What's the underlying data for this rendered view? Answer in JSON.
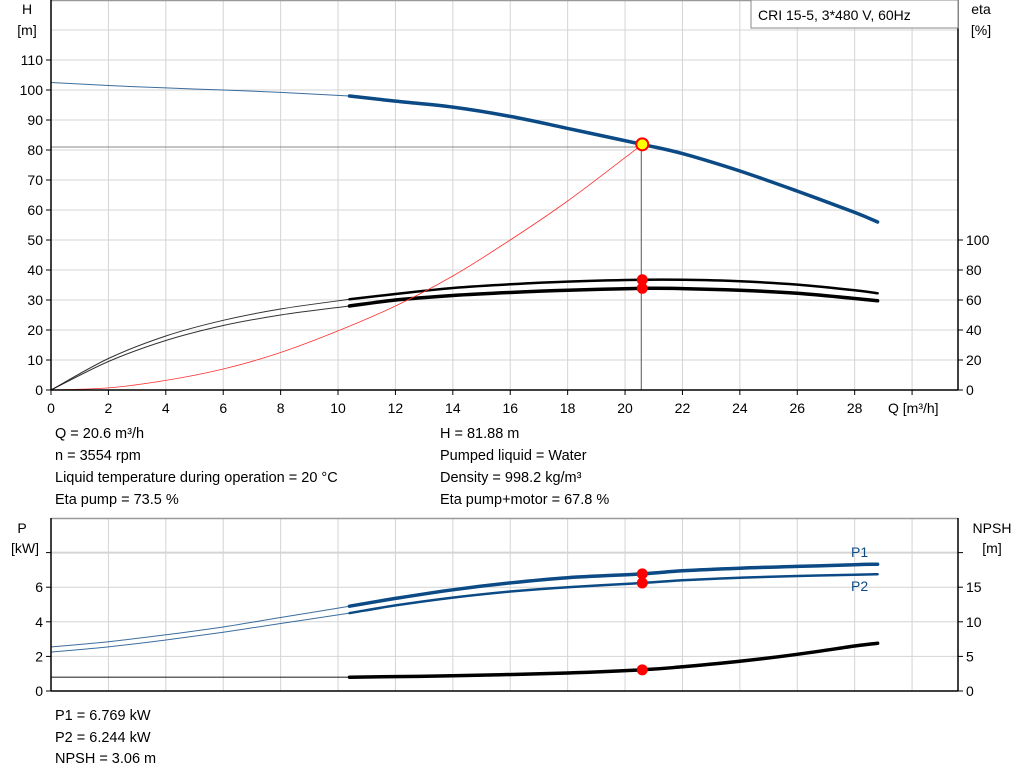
{
  "title_box": "CRI 15-5, 3*480 V, 60Hz",
  "colors": {
    "head": "#0b4a85",
    "eta": "#000000",
    "system": "#ff3030",
    "power": "#0b4a85",
    "npsh": "#000000",
    "point": "#ff0000",
    "op_fill": "#ffff00",
    "grid": "#d4d4d4"
  },
  "chart_data": [
    {
      "type": "line",
      "xlabel": "Q [m³/h]",
      "ylabel_left": [
        "H",
        "[m]"
      ],
      "ylabel_right": [
        "eta",
        "[%]"
      ],
      "xlim": [
        0,
        31.6
      ],
      "ylim_left": [
        0,
        130
      ],
      "ylim_right": [
        0,
        260
      ],
      "x_ticks": [
        0,
        2,
        4,
        6,
        8,
        10,
        12,
        14,
        16,
        18,
        20,
        22,
        24,
        26,
        28
      ],
      "y_ticks_left": [
        0,
        10,
        20,
        30,
        40,
        50,
        60,
        70,
        80,
        90,
        100,
        110
      ],
      "y_ticks_right": [
        0,
        20,
        40,
        60,
        80,
        100
      ],
      "grid": true,
      "duty_range_start_q": 10.4,
      "series": [
        {
          "key": "head",
          "axis": "left",
          "x": [
            0,
            2,
            4,
            6,
            8,
            10.4,
            12,
            14,
            16,
            18,
            20.6,
            22,
            24,
            26,
            28,
            28.8
          ],
          "y": [
            102.5,
            101.5,
            100.7,
            100,
            99.2,
            98,
            96.3,
            94.3,
            91.2,
            87.2,
            81.88,
            78.8,
            73,
            66.3,
            59.2,
            56
          ]
        },
        {
          "key": "eta_pump",
          "axis": "right",
          "x": [
            0,
            2,
            4,
            6,
            8,
            10.4,
            12,
            14,
            16,
            18,
            20.6,
            22,
            24,
            26,
            28,
            28.8
          ],
          "y": [
            0,
            21,
            36,
            46.5,
            54,
            60.5,
            64,
            68,
            70.5,
            72.3,
            73.5,
            73.5,
            72.5,
            70.3,
            66.5,
            64.5
          ]
        },
        {
          "key": "eta_pump_motor",
          "axis": "right",
          "x": [
            0,
            2,
            4,
            6,
            8,
            10.4,
            12,
            14,
            16,
            18,
            20.6,
            22,
            24,
            26,
            28,
            28.8
          ],
          "y": [
            0,
            19,
            33,
            43,
            50,
            56,
            60,
            63,
            65,
            66.5,
            67.8,
            67.6,
            66.5,
            64.5,
            61,
            59.5
          ]
        },
        {
          "key": "system",
          "axis": "left",
          "x": [
            0,
            2,
            4,
            6,
            8,
            10,
            12,
            14,
            16,
            18,
            20.6
          ],
          "y": [
            0,
            0.7,
            3.2,
            7,
            12.5,
            19.7,
            28,
            38,
            50,
            63,
            81.88
          ]
        }
      ],
      "operating_point": {
        "q": 20.6,
        "h": 81.88,
        "eta_pump": 73.5,
        "eta_pump_motor": 67.8
      }
    },
    {
      "type": "line",
      "ylabel_left": [
        "P",
        "[kW]"
      ],
      "ylabel_right": [
        "NPSH",
        "[m]"
      ],
      "xlim": [
        0,
        31.6
      ],
      "ylim_left": [
        0,
        10
      ],
      "ylim_right": [
        0,
        25
      ],
      "y_ticks_left": [
        0,
        2,
        4,
        6,
        8
      ],
      "y_tick_labels_left": [
        "0",
        "2",
        "4",
        "6",
        ""
      ],
      "y_ticks_right": [
        0,
        5,
        10,
        15,
        20
      ],
      "y_tick_labels_right": [
        "0",
        "5",
        "10",
        "15",
        ""
      ],
      "grid": true,
      "duty_range_start_q": 10.4,
      "series": [
        {
          "key": "p1",
          "name": "P1",
          "axis": "left",
          "x": [
            0,
            2,
            4,
            6,
            8,
            10.4,
            12,
            14,
            16,
            18,
            20.6,
            22,
            24,
            26,
            28,
            28.8
          ],
          "y": [
            2.55,
            2.85,
            3.25,
            3.7,
            4.25,
            4.9,
            5.35,
            5.85,
            6.25,
            6.55,
            6.769,
            6.95,
            7.1,
            7.2,
            7.3,
            7.33
          ]
        },
        {
          "key": "p2",
          "name": "P2",
          "axis": "left",
          "x": [
            0,
            2,
            4,
            6,
            8,
            10.4,
            12,
            14,
            16,
            18,
            20.6,
            22,
            24,
            26,
            28,
            28.8
          ],
          "y": [
            2.25,
            2.55,
            2.95,
            3.4,
            3.9,
            4.5,
            4.95,
            5.4,
            5.75,
            6.0,
            6.244,
            6.4,
            6.55,
            6.65,
            6.72,
            6.75
          ]
        },
        {
          "key": "npsh",
          "axis": "right",
          "x": [
            0,
            10.4,
            14,
            18,
            20.6,
            22,
            24,
            26,
            28,
            28.8
          ],
          "y": [
            2.0,
            2.0,
            2.2,
            2.6,
            3.06,
            3.5,
            4.3,
            5.3,
            6.5,
            6.9
          ]
        }
      ],
      "operating_point": {
        "q": 20.6,
        "p1": 6.769,
        "p2": 6.244,
        "npsh": 3.06
      }
    }
  ],
  "info_top": {
    "left": [
      "Q = 20.6 m³/h",
      "n = 3554 rpm",
      "Liquid temperature during operation = 20 °C",
      "Eta pump = 73.5 %"
    ],
    "right": [
      "H = 81.88 m",
      "Pumped liquid = Water",
      "Density = 998.2 kg/m³",
      "Eta pump+motor = 67.8 %"
    ]
  },
  "info_bottom": [
    "P1 = 6.769 kW",
    "P2 = 6.244 kW",
    "NPSH = 3.06 m"
  ]
}
